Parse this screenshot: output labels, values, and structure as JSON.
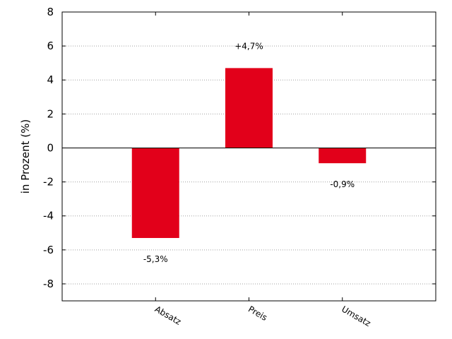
{
  "chart_data": {
    "type": "bar",
    "categories": [
      "Absatz",
      "Preis",
      "Umsatz"
    ],
    "values": [
      -5.3,
      4.7,
      -0.9
    ],
    "data_labels": [
      "-5,3%",
      "+4,7%",
      "-0,9%"
    ],
    "ylabel": "in Prozent (%)",
    "ylim": [
      -9,
      8
    ],
    "yticks": [
      8,
      6,
      4,
      2,
      0,
      -2,
      -4,
      -6,
      -8
    ],
    "grid": "horizontal-dotted",
    "bar_color": "#e2001a"
  }
}
